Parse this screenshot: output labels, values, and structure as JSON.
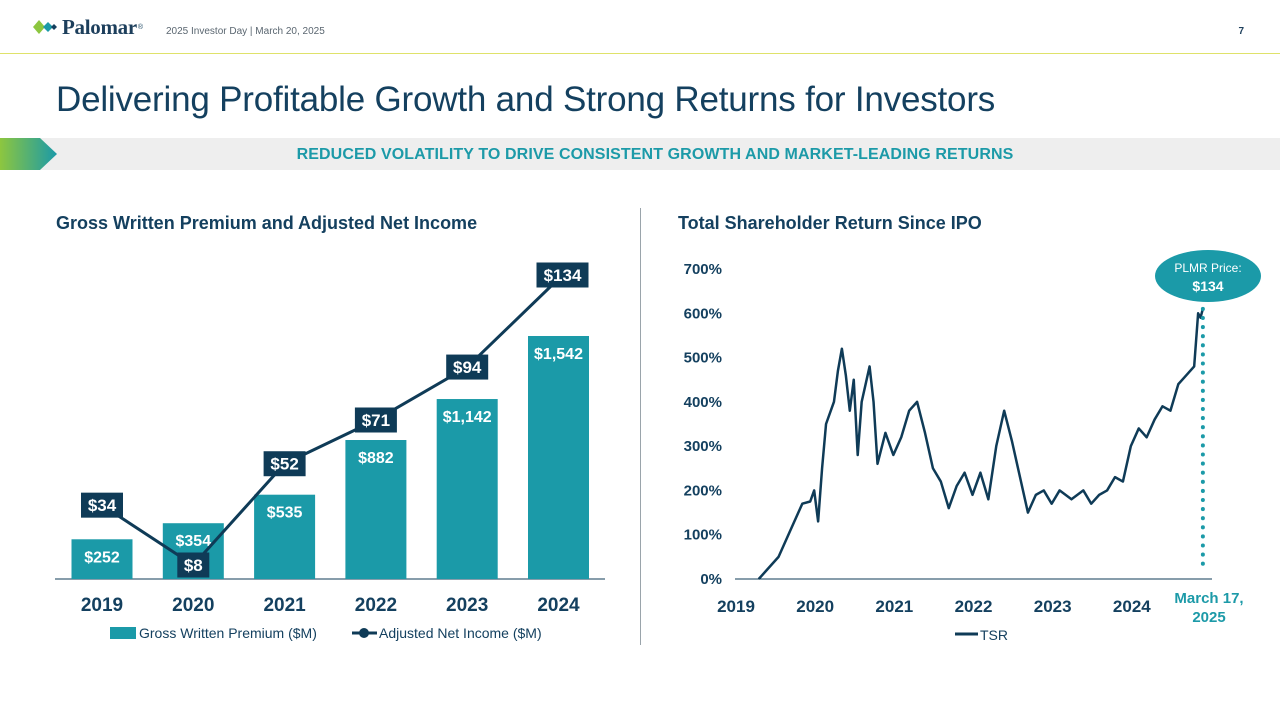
{
  "header": {
    "logo_text": "Palomar",
    "logo_reg": "®",
    "event": "2025 Investor Day | March 20, 2025",
    "page_number": "7"
  },
  "title": "Delivering Profitable Growth and Strong Returns for Investors",
  "banner": "REDUCED VOLATILITY TO DRIVE CONSISTENT GROWTH AND MARKET-LEADING RETURNS",
  "colors": {
    "teal": "#1b9aa8",
    "navy": "#0f3b57",
    "lime": "#8dc63f"
  },
  "chart_data": [
    {
      "type": "bar",
      "title": "Gross Written Premium and Adjusted Net Income",
      "categories": [
        "2019",
        "2020",
        "2021",
        "2022",
        "2023",
        "2024"
      ],
      "series": [
        {
          "name": "Gross Written Premium ($M)",
          "kind": "bar",
          "values": [
            252,
            354,
            535,
            882,
            1142,
            1542
          ],
          "labels": [
            "$252",
            "$354",
            "$535",
            "$882",
            "$1,142",
            "$1,542"
          ]
        },
        {
          "name": "Adjusted Net Income ($M)",
          "kind": "line",
          "values": [
            34,
            8,
            52,
            71,
            94,
            134
          ],
          "labels": [
            "$34",
            "$8",
            "$52",
            "$71",
            "$94",
            "$134"
          ]
        }
      ],
      "legend": [
        "Gross Written Premium ($M)",
        "Adjusted Net Income ($M)"
      ],
      "legend_position": "bottom"
    },
    {
      "type": "line",
      "title": "Total Shareholder Return Since IPO",
      "series": [
        {
          "name": "TSR",
          "points": [
            [
              2019.3,
              0
            ],
            [
              2019.4,
              20
            ],
            [
              2019.55,
              50
            ],
            [
              2019.7,
              110
            ],
            [
              2019.85,
              170
            ],
            [
              2019.95,
              175
            ],
            [
              2020.0,
              200
            ],
            [
              2020.05,
              130
            ],
            [
              2020.1,
              250
            ],
            [
              2020.15,
              350
            ],
            [
              2020.25,
              400
            ],
            [
              2020.3,
              470
            ],
            [
              2020.35,
              520
            ],
            [
              2020.4,
              460
            ],
            [
              2020.45,
              380
            ],
            [
              2020.5,
              450
            ],
            [
              2020.55,
              280
            ],
            [
              2020.6,
              400
            ],
            [
              2020.7,
              480
            ],
            [
              2020.75,
              400
            ],
            [
              2020.8,
              260
            ],
            [
              2020.9,
              330
            ],
            [
              2021.0,
              280
            ],
            [
              2021.1,
              320
            ],
            [
              2021.2,
              380
            ],
            [
              2021.3,
              400
            ],
            [
              2021.4,
              330
            ],
            [
              2021.5,
              250
            ],
            [
              2021.6,
              220
            ],
            [
              2021.7,
              160
            ],
            [
              2021.8,
              210
            ],
            [
              2021.9,
              240
            ],
            [
              2022.0,
              190
            ],
            [
              2022.1,
              240
            ],
            [
              2022.2,
              180
            ],
            [
              2022.3,
              300
            ],
            [
              2022.4,
              380
            ],
            [
              2022.5,
              310
            ],
            [
              2022.6,
              230
            ],
            [
              2022.7,
              150
            ],
            [
              2022.8,
              190
            ],
            [
              2022.9,
              200
            ],
            [
              2023.0,
              170
            ],
            [
              2023.1,
              200
            ],
            [
              2023.25,
              180
            ],
            [
              2023.4,
              200
            ],
            [
              2023.5,
              170
            ],
            [
              2023.6,
              190
            ],
            [
              2023.7,
              200
            ],
            [
              2023.8,
              230
            ],
            [
              2023.9,
              220
            ],
            [
              2024.0,
              300
            ],
            [
              2024.1,
              340
            ],
            [
              2024.2,
              320
            ],
            [
              2024.3,
              360
            ],
            [
              2024.4,
              390
            ],
            [
              2024.5,
              380
            ],
            [
              2024.6,
              440
            ],
            [
              2024.7,
              460
            ],
            [
              2024.8,
              480
            ],
            [
              2024.85,
              600
            ],
            [
              2024.88,
              590
            ],
            [
              2024.91,
              610
            ]
          ]
        }
      ],
      "x_ticks": [
        "2019",
        "2020",
        "2021",
        "2022",
        "2023",
        "2024"
      ],
      "xlim": [
        2019,
        2025
      ],
      "y_ticks": [
        "0%",
        "100%",
        "200%",
        "300%",
        "400%",
        "500%",
        "600%",
        "700%"
      ],
      "ylim": [
        0,
        700
      ],
      "ylabel": "",
      "legend": [
        "TSR"
      ],
      "legend_position": "bottom",
      "annotation_date": "March 17, 2025",
      "annotation_date_lines": [
        "March 17,",
        "2025"
      ],
      "bubble_title": "PLMR Price:",
      "bubble_value": "$134"
    }
  ]
}
